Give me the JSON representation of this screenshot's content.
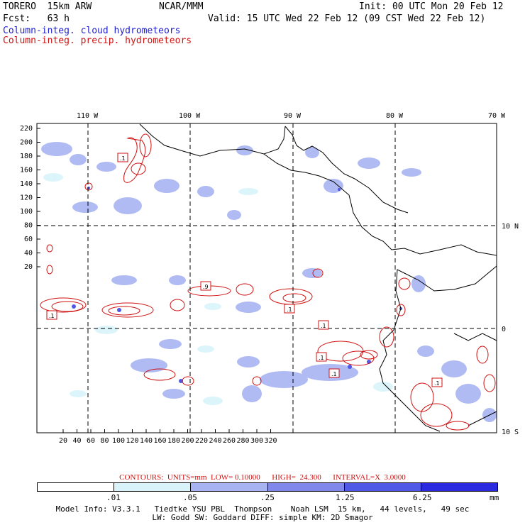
{
  "header": {
    "model": "TORERO  15km ARW",
    "org": "NCAR/MMM",
    "init": "Init: 00 UTC Mon 20 Feb 12",
    "fcst": "Fcst:   63 h",
    "valid": "Valid: 15 UTC Wed 22 Feb 12 (09 CST Wed 22 Feb 12)",
    "field1": "Column-integ. cloud hydrometeors",
    "field2": "Column-integ. precip. hydrometeors",
    "field1_color": "#2020d0",
    "field2_color": "#d01010"
  },
  "axes": {
    "top_lon_labels": [
      "110 W",
      "100 W",
      "90 W",
      "80 W",
      "70 W"
    ],
    "right_lat_labels": [
      "10 N",
      "0",
      "10 S"
    ],
    "left_ticks": [
      "220",
      "200",
      "180",
      "160",
      "140",
      "120",
      "100",
      "80",
      "60",
      "40",
      "20"
    ],
    "bottom_ticks": [
      "20",
      "40",
      "60",
      "80",
      "100",
      "120",
      "140",
      "160",
      "180",
      "200",
      "220",
      "240",
      "260",
      "280",
      "300",
      "320"
    ]
  },
  "contour_labels": [
    ".1",
    ".1",
    ".9",
    ".1",
    ".1",
    ".1",
    ".1",
    ".1"
  ],
  "footer": {
    "contours": "CONTOURS:  UNITS=mm  LOW= 0.10000      HIGH=  24.300      INTERVAL=X  3.0000",
    "legend_ticks": [
      ".01",
      ".05",
      ".25",
      "1.25",
      "6.25"
    ],
    "legend_unit": "mm",
    "legend_colors": [
      "#ffffff",
      "#d8f4fa",
      "#a8b4f2",
      "#8088ec",
      "#5058e6",
      "#2a2ae0"
    ],
    "model_info_1": "Model Info: V3.3.1   Tiedtke YSU PBL  Thompson    Noah LSM  15 km,   44 levels,   49 sec",
    "model_info_2": "LW: Godd SW: Goddard DIFF: simple KM: 2D Smagor"
  }
}
